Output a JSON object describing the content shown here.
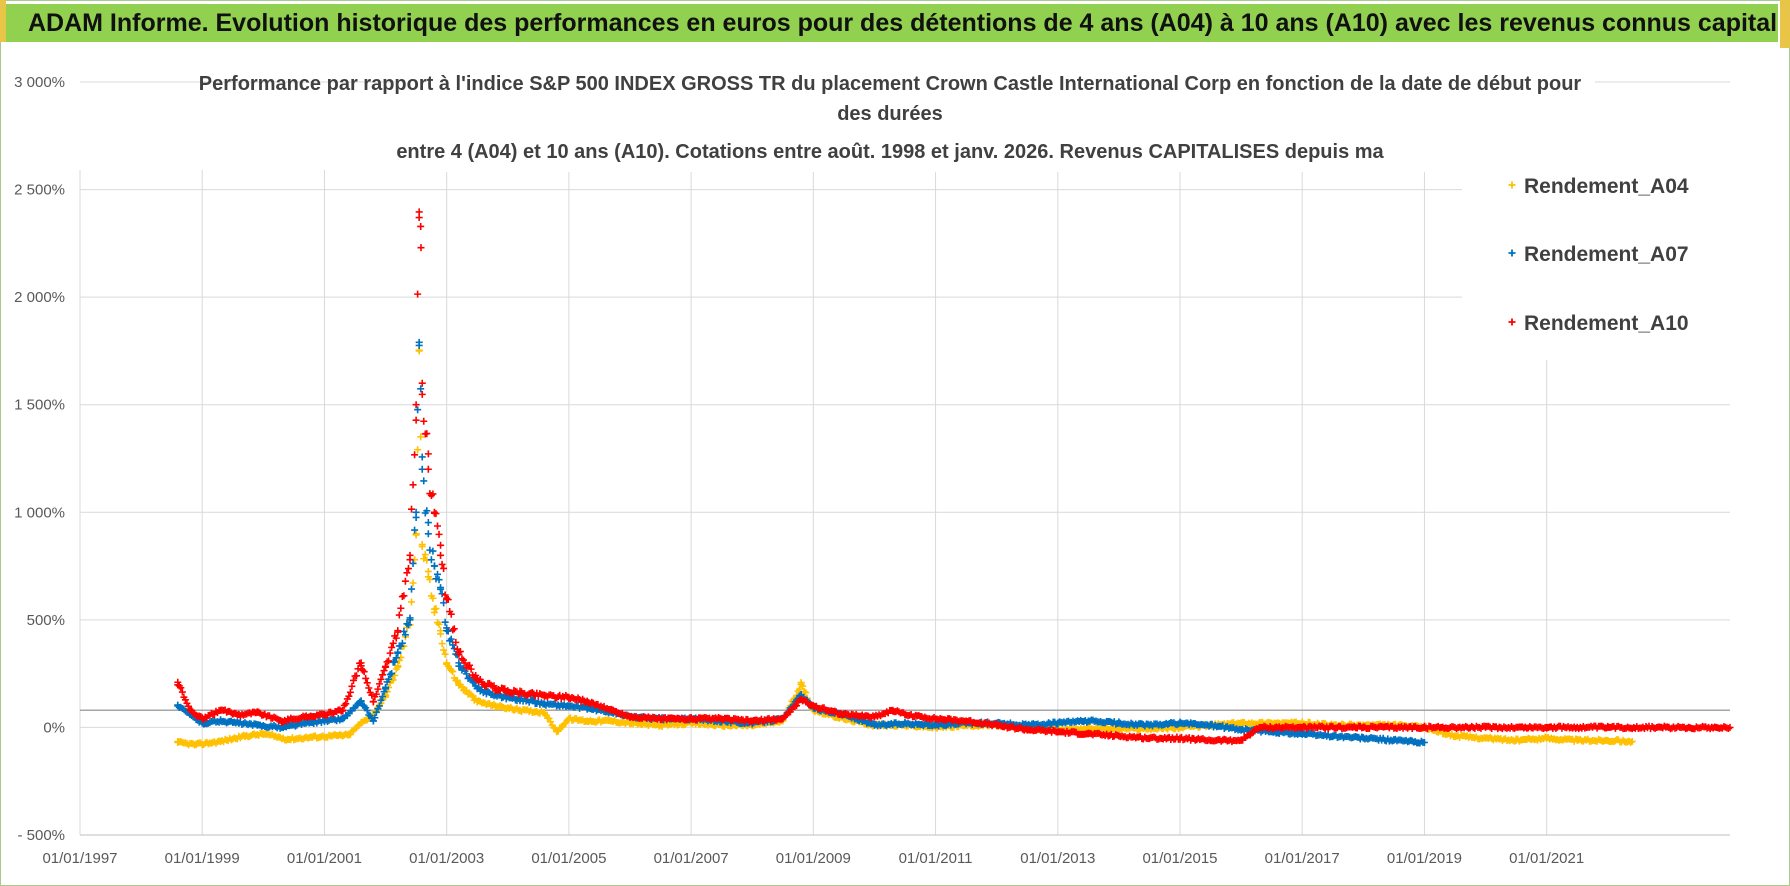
{
  "banner": {
    "title": "ADAM Informe. Evolution historique des performances en euros pour des détentions de 4 ans (A04) à 10 ans (A10) avec les revenus connus capitalisés"
  },
  "chart_data": {
    "type": "scatter",
    "title_lines": [
      "Performance par rapport à l'indice S&P 500 INDEX GROSS TR  du placement Crown Castle International Corp en fonction de la date de début pour",
      "des durées",
      "entre 4 (A04) et 10 ans (A10). Cotations entre août. 1998 et janv. 2026. Revenus CAPITALISES depuis ma"
    ],
    "ylim": [
      -500,
      3000
    ],
    "yticks": [
      -500,
      0,
      500,
      1000,
      1500,
      2000,
      2500,
      3000
    ],
    "ytick_labels": [
      "- 500%",
      "0%",
      "500%",
      "1 000%",
      "1 500%",
      "2 000%",
      "2 500%",
      "3 000%"
    ],
    "xlim": [
      1997.0,
      2024.0
    ],
    "xticks": [
      1997,
      1999,
      2001,
      2003,
      2005,
      2007,
      2009,
      2011,
      2013,
      2015,
      2017,
      2019,
      2021
    ],
    "xtick_labels": [
      "01/01/1997",
      "01/01/1999",
      "01/01/2001",
      "01/01/2003",
      "01/01/2005",
      "01/01/2007",
      "01/01/2009",
      "01/01/2011",
      "01/01/2013",
      "01/01/2015",
      "01/01/2017",
      "01/01/2019",
      "01/01/2021"
    ],
    "reference_line": 80,
    "legend_position": "top-right",
    "series": [
      {
        "name": "Rendement_A04",
        "color": "#ffc000",
        "marker": "+",
        "points": [
          [
            1998.6,
            -70
          ],
          [
            1998.9,
            -80
          ],
          [
            1999.3,
            -65
          ],
          [
            1999.7,
            -40
          ],
          [
            2000.0,
            -30
          ],
          [
            2000.4,
            -55
          ],
          [
            2000.8,
            -45
          ],
          [
            2001.1,
            -40
          ],
          [
            2001.4,
            -35
          ],
          [
            2001.6,
            20
          ],
          [
            2001.8,
            60
          ],
          [
            2002.0,
            150
          ],
          [
            2002.2,
            280
          ],
          [
            2002.4,
            500
          ],
          [
            2002.5,
            900
          ],
          [
            2002.55,
            1750
          ],
          [
            2002.6,
            850
          ],
          [
            2002.7,
            700
          ],
          [
            2002.8,
            550
          ],
          [
            2002.9,
            450
          ],
          [
            2003.0,
            300
          ],
          [
            2003.2,
            200
          ],
          [
            2003.5,
            120
          ],
          [
            2003.8,
            100
          ],
          [
            2004.2,
            80
          ],
          [
            2004.6,
            70
          ],
          [
            2004.8,
            -20
          ],
          [
            2005.0,
            40
          ],
          [
            2005.3,
            30
          ],
          [
            2005.7,
            30
          ],
          [
            2006.0,
            20
          ],
          [
            2006.5,
            10
          ],
          [
            2007.0,
            20
          ],
          [
            2007.5,
            10
          ],
          [
            2008.0,
            10
          ],
          [
            2008.5,
            30
          ],
          [
            2008.8,
            200
          ],
          [
            2009.0,
            80
          ],
          [
            2009.5,
            40
          ],
          [
            2010.0,
            10
          ],
          [
            2010.5,
            10
          ],
          [
            2011.0,
            0
          ],
          [
            2011.5,
            10
          ],
          [
            2012.0,
            10
          ],
          [
            2012.5,
            -5
          ],
          [
            2013.0,
            -10
          ],
          [
            2013.5,
            -5
          ],
          [
            2014.0,
            -5
          ],
          [
            2014.5,
            -5
          ],
          [
            2015.0,
            0
          ],
          [
            2015.5,
            10
          ],
          [
            2016.0,
            20
          ],
          [
            2016.5,
            20
          ],
          [
            2017.0,
            20
          ],
          [
            2017.5,
            10
          ],
          [
            2018.0,
            10
          ],
          [
            2018.5,
            10
          ],
          [
            2019.0,
            0
          ],
          [
            2019.5,
            -40
          ],
          [
            2020.0,
            -50
          ],
          [
            2020.5,
            -60
          ],
          [
            2021.0,
            -50
          ],
          [
            2021.5,
            -60
          ],
          [
            2022.0,
            -60
          ],
          [
            2022.4,
            -65
          ]
        ]
      },
      {
        "name": "Rendement_A07",
        "color": "#0070c0",
        "marker": "+",
        "points": [
          [
            1998.6,
            100
          ],
          [
            1998.8,
            60
          ],
          [
            1999.0,
            20
          ],
          [
            1999.3,
            30
          ],
          [
            1999.6,
            20
          ],
          [
            1999.9,
            10
          ],
          [
            2000.3,
            0
          ],
          [
            2000.7,
            20
          ],
          [
            2001.0,
            30
          ],
          [
            2001.3,
            40
          ],
          [
            2001.6,
            120
          ],
          [
            2001.8,
            30
          ],
          [
            2002.0,
            180
          ],
          [
            2002.2,
            350
          ],
          [
            2002.4,
            500
          ],
          [
            2002.5,
            1000
          ],
          [
            2002.55,
            1790
          ],
          [
            2002.6,
            1200
          ],
          [
            2002.7,
            900
          ],
          [
            2002.8,
            750
          ],
          [
            2002.9,
            650
          ],
          [
            2003.0,
            450
          ],
          [
            2003.2,
            300
          ],
          [
            2003.5,
            180
          ],
          [
            2003.8,
            150
          ],
          [
            2004.2,
            130
          ],
          [
            2004.6,
            110
          ],
          [
            2005.0,
            100
          ],
          [
            2005.3,
            90
          ],
          [
            2005.7,
            70
          ],
          [
            2006.0,
            50
          ],
          [
            2006.5,
            40
          ],
          [
            2007.0,
            40
          ],
          [
            2007.5,
            30
          ],
          [
            2008.0,
            20
          ],
          [
            2008.5,
            40
          ],
          [
            2008.8,
            150
          ],
          [
            2009.0,
            90
          ],
          [
            2009.5,
            60
          ],
          [
            2010.0,
            10
          ],
          [
            2010.5,
            20
          ],
          [
            2011.0,
            10
          ],
          [
            2011.5,
            20
          ],
          [
            2012.0,
            20
          ],
          [
            2012.5,
            10
          ],
          [
            2013.0,
            20
          ],
          [
            2013.5,
            30
          ],
          [
            2014.0,
            20
          ],
          [
            2014.5,
            10
          ],
          [
            2015.0,
            20
          ],
          [
            2015.5,
            10
          ],
          [
            2016.0,
            -10
          ],
          [
            2016.5,
            -20
          ],
          [
            2017.0,
            -30
          ],
          [
            2017.5,
            -40
          ],
          [
            2018.0,
            -50
          ],
          [
            2018.5,
            -60
          ],
          [
            2019.0,
            -70
          ]
        ]
      },
      {
        "name": "Rendement_A10",
        "color": "#ff0000",
        "marker": "+",
        "points": [
          [
            1998.6,
            210
          ],
          [
            1998.8,
            80
          ],
          [
            1999.0,
            40
          ],
          [
            1999.3,
            80
          ],
          [
            1999.6,
            60
          ],
          [
            1999.9,
            70
          ],
          [
            2000.3,
            30
          ],
          [
            2000.7,
            50
          ],
          [
            2001.0,
            60
          ],
          [
            2001.3,
            80
          ],
          [
            2001.6,
            300
          ],
          [
            2001.8,
            120
          ],
          [
            2002.0,
            280
          ],
          [
            2002.2,
            450
          ],
          [
            2002.4,
            800
          ],
          [
            2002.5,
            1500
          ],
          [
            2002.55,
            2370
          ],
          [
            2002.58,
            2230
          ],
          [
            2002.6,
            1600
          ],
          [
            2002.7,
            1200
          ],
          [
            2002.8,
            1000
          ],
          [
            2002.9,
            800
          ],
          [
            2003.0,
            600
          ],
          [
            2003.2,
            350
          ],
          [
            2003.5,
            220
          ],
          [
            2003.8,
            180
          ],
          [
            2004.2,
            160
          ],
          [
            2004.6,
            150
          ],
          [
            2005.0,
            140
          ],
          [
            2005.3,
            120
          ],
          [
            2005.7,
            80
          ],
          [
            2006.0,
            50
          ],
          [
            2006.5,
            40
          ],
          [
            2007.0,
            40
          ],
          [
            2007.5,
            40
          ],
          [
            2008.0,
            30
          ],
          [
            2008.5,
            40
          ],
          [
            2008.8,
            130
          ],
          [
            2009.0,
            100
          ],
          [
            2009.5,
            60
          ],
          [
            2010.0,
            50
          ],
          [
            2010.3,
            80
          ],
          [
            2010.5,
            60
          ],
          [
            2011.0,
            40
          ],
          [
            2011.5,
            30
          ],
          [
            2012.0,
            10
          ],
          [
            2012.5,
            -10
          ],
          [
            2013.0,
            -20
          ],
          [
            2013.5,
            -30
          ],
          [
            2014.0,
            -40
          ],
          [
            2014.5,
            -50
          ],
          [
            2015.0,
            -50
          ],
          [
            2015.5,
            -60
          ],
          [
            2016.0,
            -60
          ],
          [
            2016.3,
            0
          ],
          [
            2017.0,
            0
          ],
          [
            2018.0,
            0
          ],
          [
            2019.0,
            0
          ],
          [
            2020.0,
            0
          ],
          [
            2021.0,
            0
          ],
          [
            2022.0,
            0
          ],
          [
            2023.0,
            0
          ],
          [
            2024.0,
            0
          ]
        ]
      }
    ]
  }
}
